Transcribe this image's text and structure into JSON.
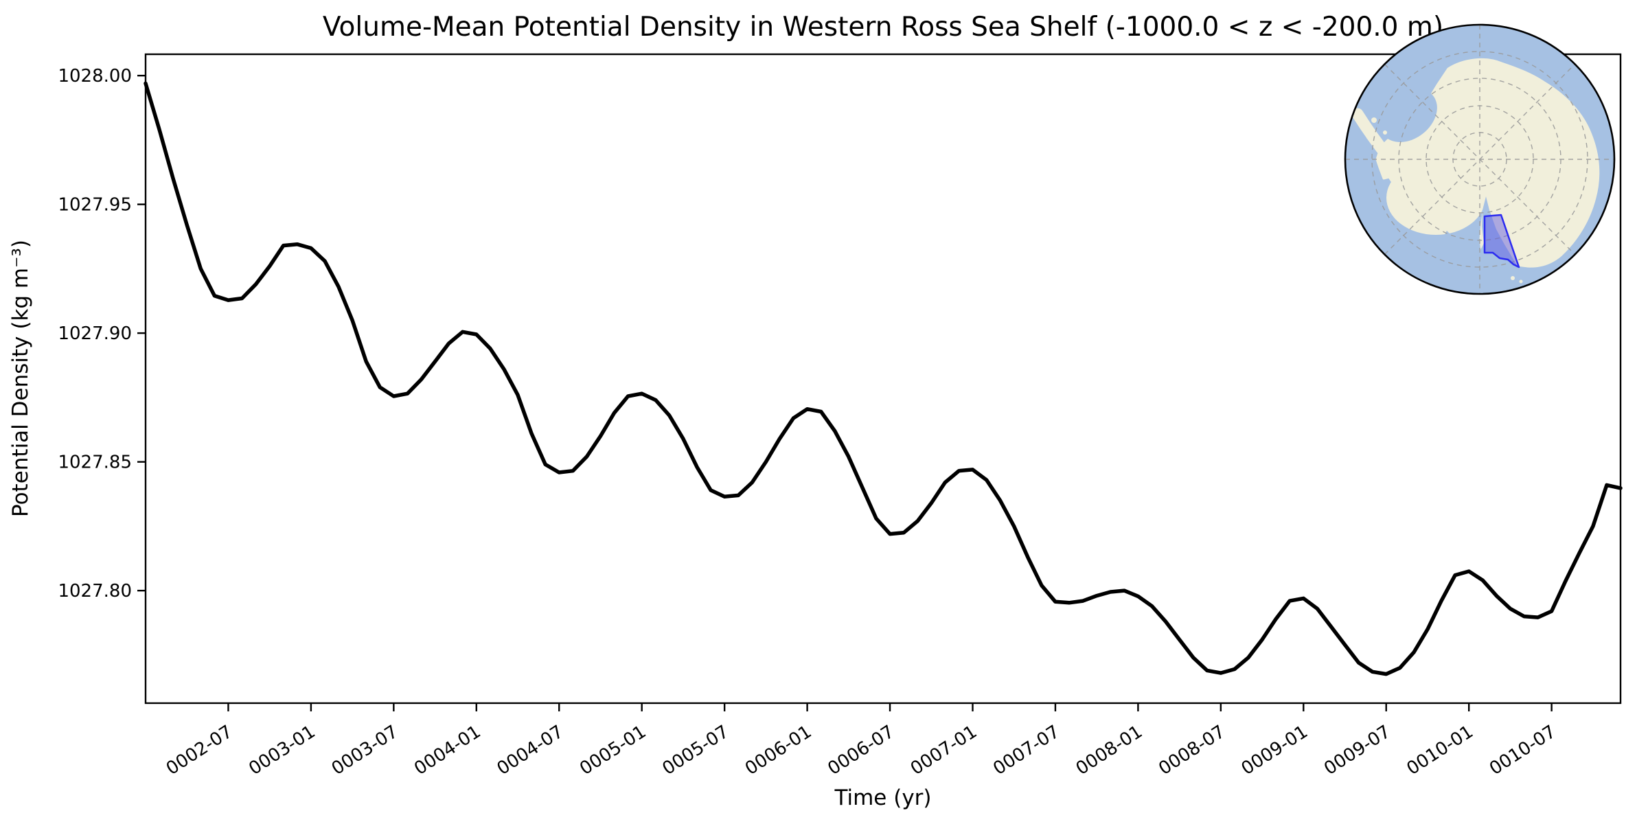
{
  "figure": {
    "title": "Volume-Mean Potential Density in Western Ross Sea Shelf (-1000.0 < z < -200.0 m)",
    "background_color": "#ffffff"
  },
  "chart_data": {
    "type": "line",
    "title": "Volume-Mean Potential Density in Western Ross Sea Shelf (-1000.0 < z < -200.0 m)",
    "xlabel": "Time (yr)",
    "ylabel": "Potential Density (kg m⁻³)",
    "grid": false,
    "legend": "none",
    "line_color": "#000000",
    "line_width": 5.5,
    "ylim": [
      1027.7563,
      1028.0083
    ],
    "xlim": [
      "0002-01",
      "0010-12"
    ],
    "y_tick_labels": [
      "1028.00",
      "1027.95",
      "1027.90",
      "1027.85",
      "1027.80"
    ],
    "y_tick_values": [
      1028.0,
      1027.95,
      1027.9,
      1027.85,
      1027.8
    ],
    "x_tick_labels": [
      "0002-07",
      "0003-01",
      "0003-07",
      "0004-01",
      "0004-07",
      "0005-01",
      "0005-07",
      "0006-01",
      "0006-07",
      "0007-01",
      "0007-07",
      "0008-01",
      "0008-07",
      "0009-01",
      "0009-07",
      "0010-01",
      "0010-07"
    ],
    "x_tick_month_index": [
      6,
      12,
      18,
      24,
      30,
      36,
      42,
      48,
      54,
      60,
      66,
      72,
      78,
      84,
      90,
      96,
      102
    ],
    "x": [
      "0002-01",
      "0002-02",
      "0002-03",
      "0002-04",
      "0002-05",
      "0002-06",
      "0002-07",
      "0002-08",
      "0002-09",
      "0002-10",
      "0002-11",
      "0002-12",
      "0003-01",
      "0003-02",
      "0003-03",
      "0003-04",
      "0003-05",
      "0003-06",
      "0003-07",
      "0003-08",
      "0003-09",
      "0003-10",
      "0003-11",
      "0003-12",
      "0004-01",
      "0004-02",
      "0004-03",
      "0004-04",
      "0004-05",
      "0004-06",
      "0004-07",
      "0004-08",
      "0004-09",
      "0004-10",
      "0004-11",
      "0004-12",
      "0005-01",
      "0005-02",
      "0005-03",
      "0005-04",
      "0005-05",
      "0005-06",
      "0005-07",
      "0005-08",
      "0005-09",
      "0005-10",
      "0005-11",
      "0005-12",
      "0006-01",
      "0006-02",
      "0006-03",
      "0006-04",
      "0006-05",
      "0006-06",
      "0006-07",
      "0006-08",
      "0006-09",
      "0006-10",
      "0006-11",
      "0006-12",
      "0007-01",
      "0007-02",
      "0007-03",
      "0007-04",
      "0007-05",
      "0007-06",
      "0007-07",
      "0007-08",
      "0007-09",
      "0007-10",
      "0007-11",
      "0007-12",
      "0008-01",
      "0008-02",
      "0008-03",
      "0008-04",
      "0008-05",
      "0008-06",
      "0008-07",
      "0008-08",
      "0008-09",
      "0008-10",
      "0008-11",
      "0008-12",
      "0009-01",
      "0009-02",
      "0009-03",
      "0009-04",
      "0009-05",
      "0009-06",
      "0009-07",
      "0009-08",
      "0009-09",
      "0009-10",
      "0009-11",
      "0009-12",
      "0010-01",
      "0010-02",
      "0010-03",
      "0010-04",
      "0010-05",
      "0010-06",
      "0010-07",
      "0010-08",
      "0010-09",
      "0010-10",
      "0010-11",
      "0010-12"
    ],
    "series": [
      {
        "name": "Volume-mean potential density",
        "units": "kg m-3",
        "values": [
          1027.997,
          1027.979,
          1027.96,
          1027.942,
          1027.925,
          1027.9145,
          1027.9128,
          1027.9135,
          1027.919,
          1027.926,
          1027.934,
          1027.9345,
          1027.933,
          1027.928,
          1027.918,
          1027.905,
          1027.889,
          1027.879,
          1027.8755,
          1027.8765,
          1027.882,
          1027.889,
          1027.896,
          1027.9005,
          1027.8995,
          1027.894,
          1027.886,
          1027.876,
          1027.861,
          1027.849,
          1027.8459,
          1027.8465,
          1027.852,
          1027.86,
          1027.869,
          1027.8755,
          1027.8765,
          1027.874,
          1027.868,
          1027.859,
          1027.848,
          1027.839,
          1027.8365,
          1027.837,
          1027.842,
          1027.85,
          1027.859,
          1027.867,
          1027.8705,
          1027.8695,
          1027.862,
          1027.852,
          1027.84,
          1027.828,
          1027.822,
          1027.8225,
          1027.827,
          1027.834,
          1027.842,
          1027.8465,
          1027.847,
          1027.843,
          1027.835,
          1027.825,
          1027.813,
          1027.802,
          1027.7957,
          1027.7953,
          1027.796,
          1027.798,
          1027.7995,
          1027.8,
          1027.7978,
          1027.794,
          1027.788,
          1027.781,
          1027.774,
          1027.769,
          1027.768,
          1027.7695,
          1027.774,
          1027.781,
          1027.789,
          1027.796,
          1027.797,
          1027.793,
          1027.786,
          1027.779,
          1027.772,
          1027.7685,
          1027.7676,
          1027.77,
          1027.776,
          1027.785,
          1027.796,
          1027.806,
          1027.8075,
          1027.804,
          1027.798,
          1027.793,
          1027.79,
          1027.7896,
          1027.792,
          1027.8036,
          1027.8145,
          1027.825,
          1027.841,
          1027.8398
        ]
      }
    ]
  },
  "inset_map": {
    "description": "South polar stereographic map of Antarctica",
    "highlight_region": "Western Ross Sea Shelf",
    "colors": {
      "ocean": "#a6c1e3",
      "land": "#f1efdb",
      "graticule": "#999999",
      "outline": "#000000",
      "highlight_fill": "#5852e4",
      "highlight_edge": "#2b2bf0"
    }
  }
}
